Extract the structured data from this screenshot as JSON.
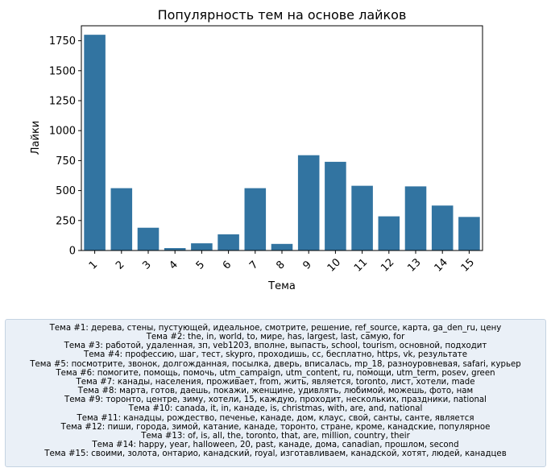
{
  "chart_data": {
    "type": "bar",
    "title": "Популярность тем на основе лайков",
    "xlabel": "Тема",
    "ylabel": "Лайки",
    "categories": [
      "1",
      "2",
      "3",
      "4",
      "5",
      "6",
      "7",
      "8",
      "9",
      "10",
      "11",
      "12",
      "13",
      "14",
      "15"
    ],
    "values": [
      1800,
      520,
      190,
      20,
      60,
      135,
      520,
      55,
      795,
      740,
      540,
      285,
      535,
      375,
      280
    ],
    "ylim": [
      0,
      1875
    ],
    "yticks": [
      0,
      250,
      500,
      750,
      1000,
      1250,
      1500,
      1750
    ],
    "bar_color": "#3274a1",
    "grid": false
  },
  "legend": {
    "background": "#eaf0f7",
    "lines": [
      "Тема #1: дерева, стены, пустующей, идеальное, смотрите, решение, ref_source, карта, ga_den_ru, цену",
      "Тема #2: the, in, world, to, мире, has, largest, last, самую, for",
      "Тема #3: работой, удаленная, зп, veb1203, вполне, выпасть, school, tourism, основной, подходит",
      "Тема #4: профессию, шаг, тест, skypro, проходишь, cc, бесплатно, https, vk, результате",
      "Тема #5: посмотрите, звонок, долгожданная, посылка, дверь, вписалась, mp_18, разноуровневая, safari, курьер",
      "Тема #6: помогите, помощь, помочь, utm_campaign, utm_content, ru, помощи, utm_term, posev, green",
      "Тема #7: канады, населения, проживает, from, жить, является, toronto, лист, хотели, made",
      "Тема #8: марта, готов, даешь, покажи, женщине, удивлять, любимой, можешь, фото, нам",
      "Тема #9: торонто, центре, зиму, хотели, 15, каждую, проходит, нескольких, праздники, national",
      "Тема #10: canada, it, in, канаде, is, christmas, with, are, and, national",
      "Тема #11: канадцы, рождество, печенье, канаде, дом, клаус, свой, санты, санте, является",
      "Тема #12: пиши, города, зимой, катание, канаде, торонто, стране, кроме, канадские, популярное",
      "Тема #13: of, is, all, the, toronto, that, are, million, country, their",
      "Тема #14: happy, year, halloween, 20, past, канаде, дома, canadian, прошлом, second",
      "Тема #15: своими, золота, онтарио, канадский, royal, изготавливаем, канадской, хотят, людей, канадцев"
    ]
  }
}
